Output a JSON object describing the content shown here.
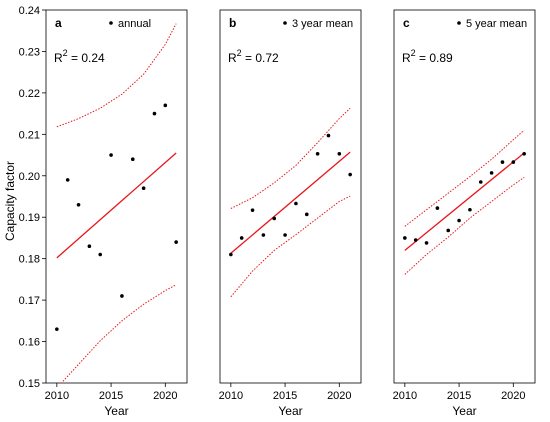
{
  "chart_data": [
    {
      "type": "scatter",
      "panel_label": "a",
      "legend": "annual",
      "r2_label": "R",
      "r2_sup": "2",
      "r2_value": "= 0.24",
      "xlabel": "Year",
      "ylabel": "Capacity factor",
      "xlim": [
        2009,
        2022
      ],
      "ylim": [
        0.15,
        0.24
      ],
      "xticks": [
        2010,
        2015,
        2020
      ],
      "yticks": [
        0.15,
        0.16,
        0.17,
        0.18,
        0.19,
        0.2,
        0.21,
        0.22,
        0.23,
        0.24
      ],
      "x": [
        2010,
        2011,
        2012,
        2013,
        2014,
        2015,
        2016,
        2017,
        2018,
        2019,
        2020,
        2021
      ],
      "y": [
        0.163,
        0.199,
        0.193,
        0.183,
        0.181,
        0.205,
        0.171,
        0.204,
        0.197,
        0.215,
        0.217,
        0.184
      ],
      "fit": {
        "x": [
          2010,
          2021
        ],
        "y": [
          0.1802,
          0.2055
        ]
      },
      "band_upper": {
        "x": [
          2010,
          2012,
          2014,
          2016,
          2018,
          2020,
          2021
        ],
        "y": [
          0.2118,
          0.2138,
          0.2163,
          0.2197,
          0.2245,
          0.2317,
          0.2367
        ]
      },
      "band_lower": {
        "x": [
          2010,
          2012,
          2014,
          2016,
          2018,
          2020,
          2021
        ],
        "y": [
          0.1488,
          0.1545,
          0.1602,
          0.165,
          0.169,
          0.1723,
          0.1737
        ]
      }
    },
    {
      "type": "scatter",
      "panel_label": "b",
      "legend": "3 year mean",
      "r2_label": "R",
      "r2_sup": "2",
      "r2_value": "= 0.72",
      "xlabel": "Year",
      "ylabel": "",
      "xlim": [
        2009,
        2022
      ],
      "ylim": [
        0.15,
        0.24
      ],
      "xticks": [
        2010,
        2015,
        2020
      ],
      "yticks": [],
      "x": [
        2010,
        2011,
        2012,
        2013,
        2014,
        2015,
        2016,
        2017,
        2018,
        2019,
        2020,
        2021
      ],
      "y": [
        0.181,
        0.185,
        0.1917,
        0.1857,
        0.1897,
        0.1857,
        0.1933,
        0.1907,
        0.2053,
        0.2097,
        0.2053,
        0.2003
      ],
      "fit": {
        "x": [
          2010,
          2021
        ],
        "y": [
          0.1813,
          0.2057
        ]
      },
      "band_upper": {
        "x": [
          2010,
          2012,
          2014,
          2016,
          2018,
          2020,
          2021
        ],
        "y": [
          0.1921,
          0.1947,
          0.1983,
          0.2025,
          0.208,
          0.2138,
          0.2163
        ]
      },
      "band_lower": {
        "x": [
          2010,
          2012,
          2014,
          2016,
          2018,
          2020,
          2021
        ],
        "y": [
          0.1708,
          0.177,
          0.182,
          0.1858,
          0.1898,
          0.1938,
          0.1951
        ]
      }
    },
    {
      "type": "scatter",
      "panel_label": "c",
      "legend": "5 year mean",
      "r2_label": "R",
      "r2_sup": "2",
      "r2_value": "= 0.89",
      "xlabel": "Year",
      "ylabel": "",
      "xlim": [
        2009,
        2022
      ],
      "ylim": [
        0.15,
        0.24
      ],
      "xticks": [
        2010,
        2015,
        2020
      ],
      "yticks": [],
      "x": [
        2010,
        2011,
        2012,
        2013,
        2014,
        2015,
        2016,
        2017,
        2018,
        2019,
        2020,
        2021
      ],
      "y": [
        0.185,
        0.1845,
        0.1838,
        0.1922,
        0.1868,
        0.1892,
        0.1918,
        0.1985,
        0.2007,
        0.2033,
        0.2033,
        0.2053
      ],
      "fit": {
        "x": [
          2010,
          2021
        ],
        "y": [
          0.182,
          0.2055
        ]
      },
      "band_upper": {
        "x": [
          2010,
          2012,
          2014,
          2016,
          2018,
          2020,
          2021
        ],
        "y": [
          0.1878,
          0.1918,
          0.1958,
          0.1998,
          0.204,
          0.2087,
          0.211
        ]
      },
      "band_lower": {
        "x": [
          2010,
          2012,
          2014,
          2016,
          2018,
          2020,
          2021
        ],
        "y": [
          0.1762,
          0.181,
          0.1852,
          0.1898,
          0.1938,
          0.1978,
          0.1996
        ]
      }
    }
  ],
  "colors": {
    "points": "#000000",
    "fit_line": "#e8161b",
    "confidence_band": "#e8161b",
    "axes": "#000000"
  }
}
